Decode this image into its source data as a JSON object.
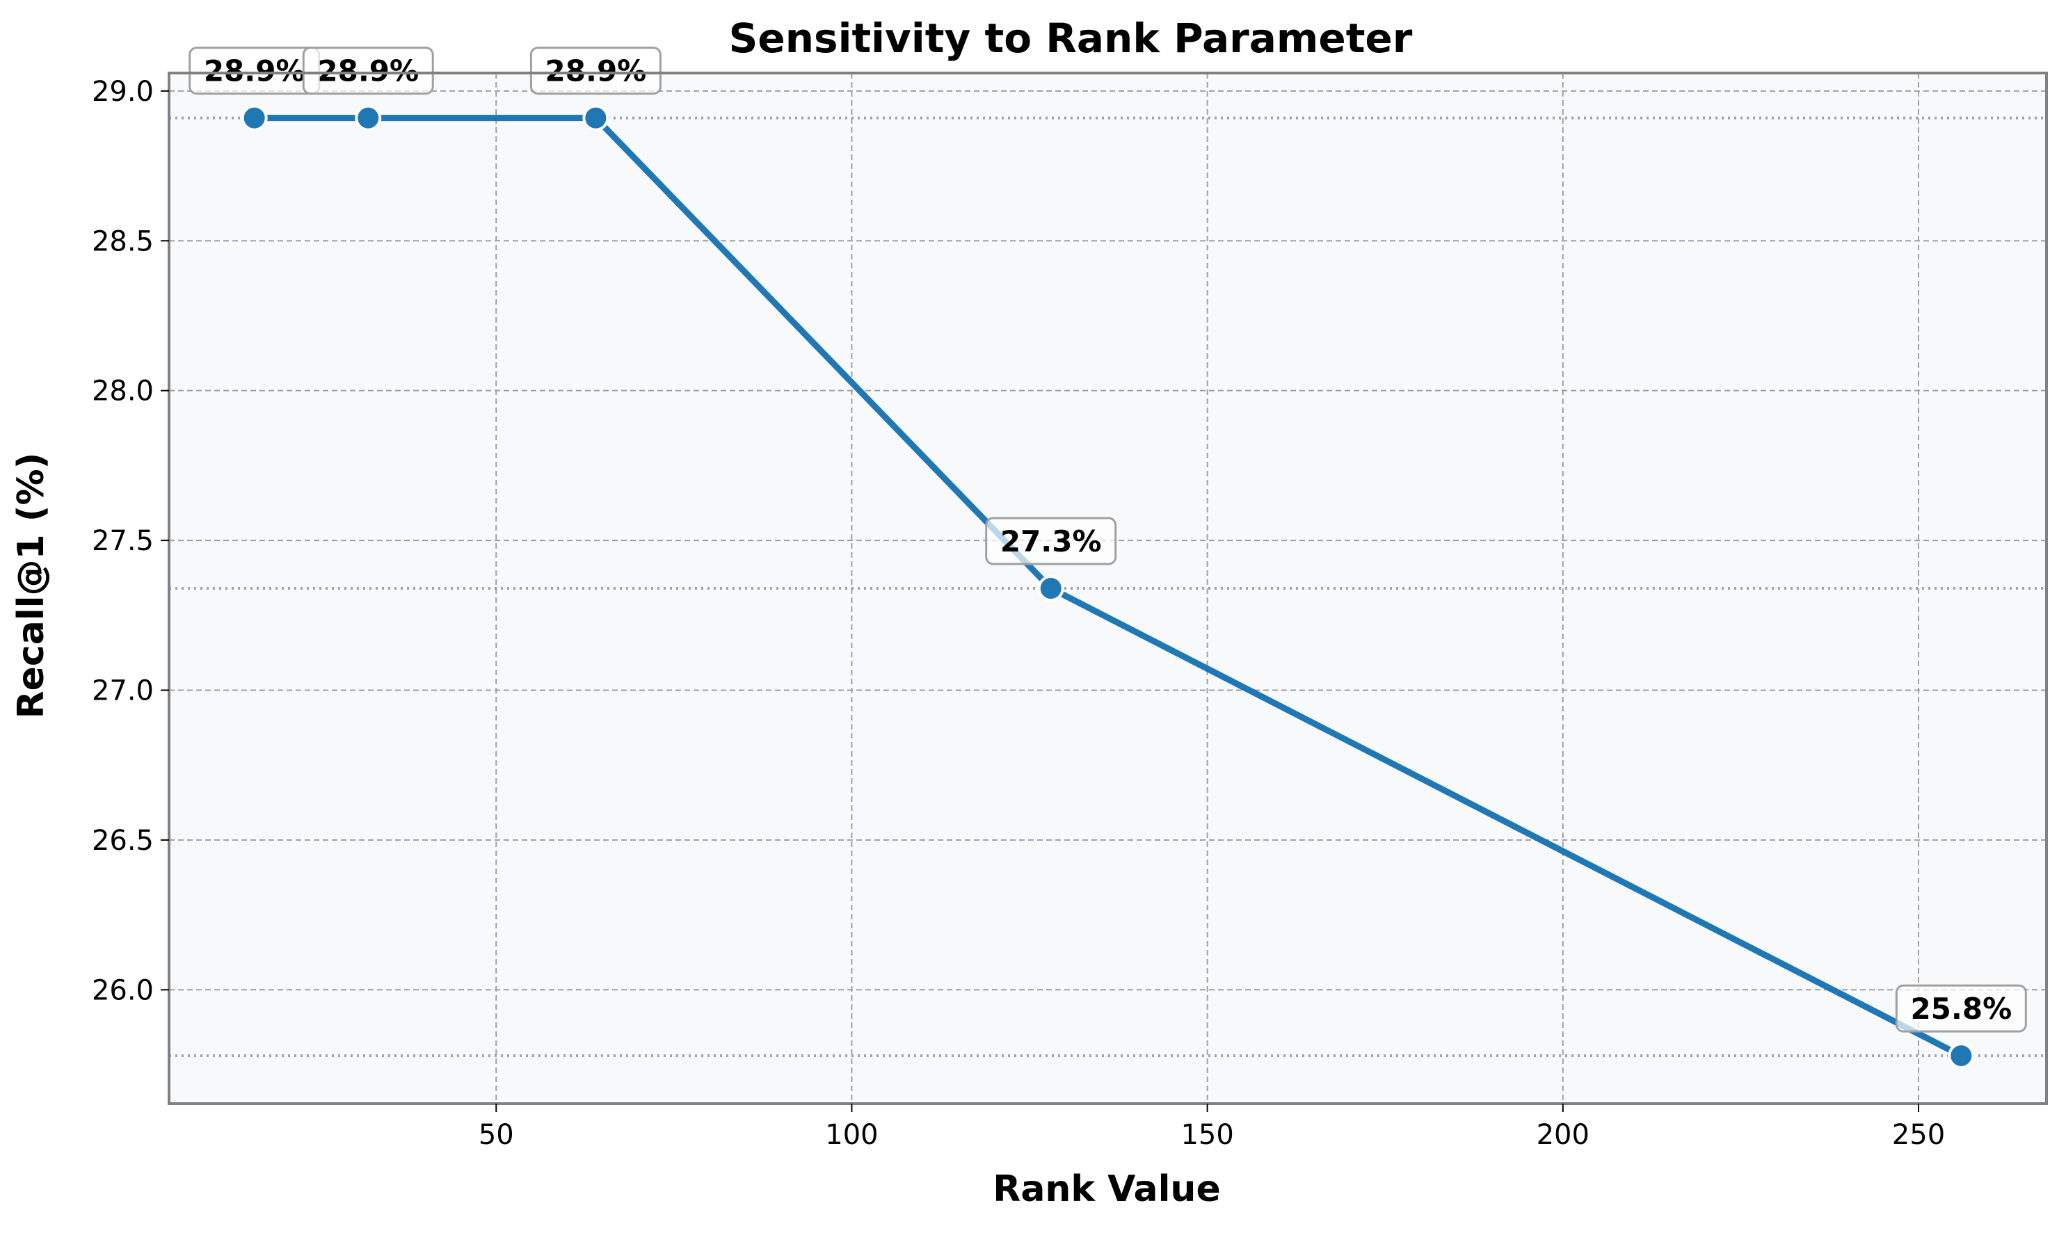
{
  "chart_data": {
    "type": "line",
    "title": "Sensitivity to Rank Parameter",
    "xlabel": "Rank Value",
    "ylabel": "Recall@1 (%)",
    "x": [
      16,
      32,
      64,
      128,
      256
    ],
    "series": [
      {
        "values": [
          28.91,
          28.91,
          28.91,
          27.34,
          25.78
        ],
        "labels": [
          "28.9%",
          "28.9%",
          "28.9%",
          "27.3%",
          "25.8%"
        ]
      }
    ],
    "xlim": [
      4,
      268
    ],
    "ylim": [
      25.62,
      29.06
    ],
    "x_ticks": [
      50,
      100,
      150,
      200,
      250
    ],
    "x_tick_labels": [
      "50",
      "100",
      "150",
      "200",
      "250"
    ],
    "y_ticks": [
      26.0,
      26.5,
      27.0,
      27.5,
      28.0,
      28.5,
      29.0
    ],
    "y_tick_labels": [
      "26.0",
      "26.5",
      "27.0",
      "27.5",
      "28.0",
      "28.5",
      "29.0"
    ],
    "reference_lines_y": [
      28.91,
      27.34,
      25.78
    ],
    "grid": true,
    "colors": {
      "line": "#1f77b4",
      "plot_background": "#f7f9fb",
      "grid": "#a0a0a0",
      "reference_line": "#8a8f96",
      "frame": "#808080",
      "marker_edge": "#ffffff",
      "label_box_border": "#a0a0a0",
      "text": "#000000"
    }
  }
}
